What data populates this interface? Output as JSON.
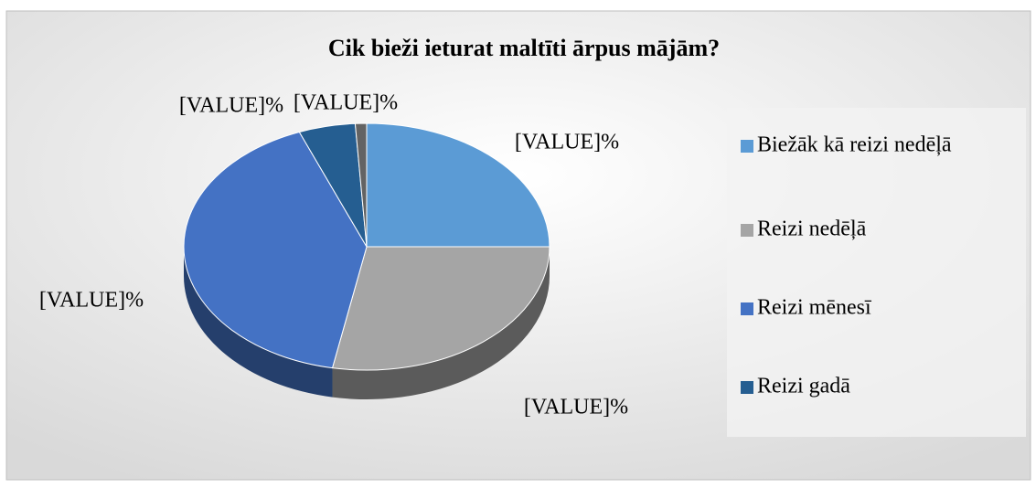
{
  "chart_data": {
    "type": "pie",
    "title": "Cik bieži ieturat maltīti ārpus mājām?",
    "categories": [
      "Biežāk kā reizi nedēļā",
      "Reizi nedēļā",
      "Reizi mēnesī",
      "Reizi gadā",
      null
    ],
    "values": [
      25,
      28,
      41,
      5,
      1
    ],
    "value_labels": [
      "[VALUE]%",
      "[VALUE]%",
      "[VALUE]%",
      "[VALUE]%",
      "[VALUE]%"
    ],
    "colors": [
      "#5b9bd5",
      "#a5a5a5",
      "#4472c4",
      "#255e91",
      "#636363"
    ],
    "legend": "right"
  }
}
